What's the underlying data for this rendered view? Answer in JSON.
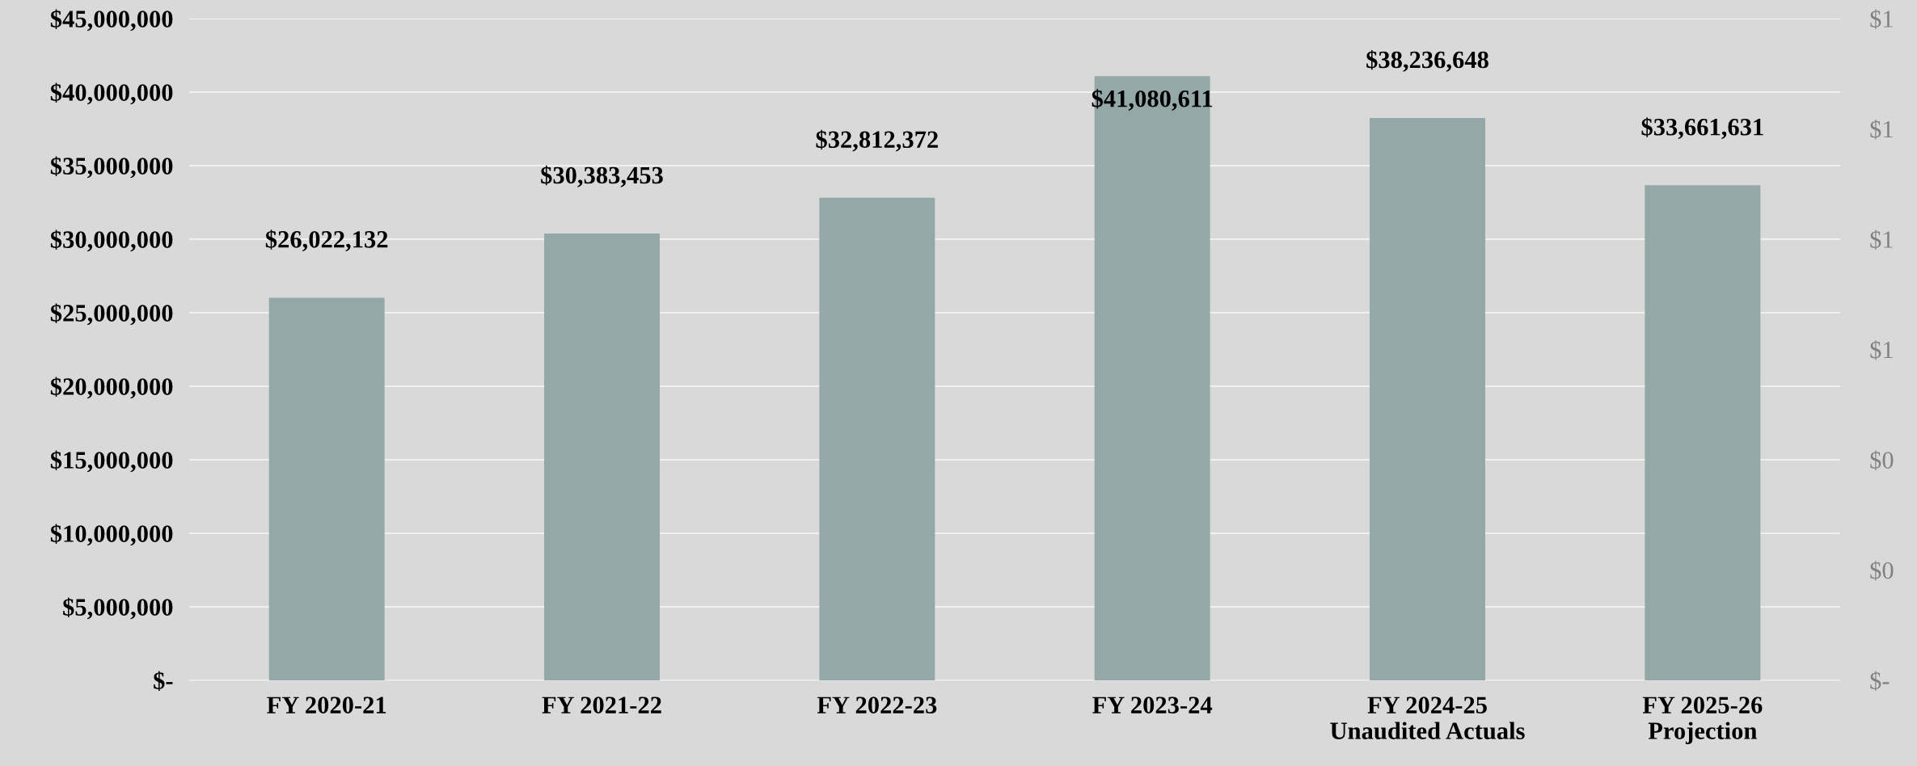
{
  "chart_data": {
    "type": "bar",
    "categories": [
      "FY 2020-21",
      "FY 2021-22",
      "FY 2022-23",
      "FY 2023-24",
      "FY 2024-25\nUnaudited Actuals",
      "FY 2025-26\nProjection"
    ],
    "values": [
      26022132,
      30383453,
      32812372,
      41080611,
      38236648,
      33661631
    ],
    "color": "#94a8a7",
    "value_labels": [
      "$26,022,132",
      "$30,383,453",
      "$32,812,372",
      "$41,080,611",
      "$38,236,648",
      "$33,661,631"
    ],
    "ylim": [
      0,
      45000000
    ],
    "yticks": [
      {
        "value": 0,
        "label": "$-"
      },
      {
        "value": 5000000,
        "label": "$5,000,000"
      },
      {
        "value": 10000000,
        "label": "$10,000,000"
      },
      {
        "value": 15000000,
        "label": "$15,000,000"
      },
      {
        "value": 20000000,
        "label": "$20,000,000"
      },
      {
        "value": 25000000,
        "label": "$25,000,000"
      },
      {
        "value": 30000000,
        "label": "$30,000,000"
      },
      {
        "value": 35000000,
        "label": "$35,000,000"
      },
      {
        "value": 40000000,
        "label": "$40,000,000"
      },
      {
        "value": 45000000,
        "label": "$45,000,000"
      }
    ],
    "y2lim": [
      0,
      1.2
    ],
    "y2ticks": [
      {
        "value": 0,
        "label": "$-"
      },
      {
        "value": 0.2,
        "label": "$0"
      },
      {
        "value": 0.4,
        "label": "$0"
      },
      {
        "value": 0.6,
        "label": "$1"
      },
      {
        "value": 0.8,
        "label": "$1"
      },
      {
        "value": 1.0,
        "label": "$1"
      },
      {
        "value": 1.2,
        "label": "$1"
      }
    ],
    "grid": "y",
    "legend": false
  }
}
